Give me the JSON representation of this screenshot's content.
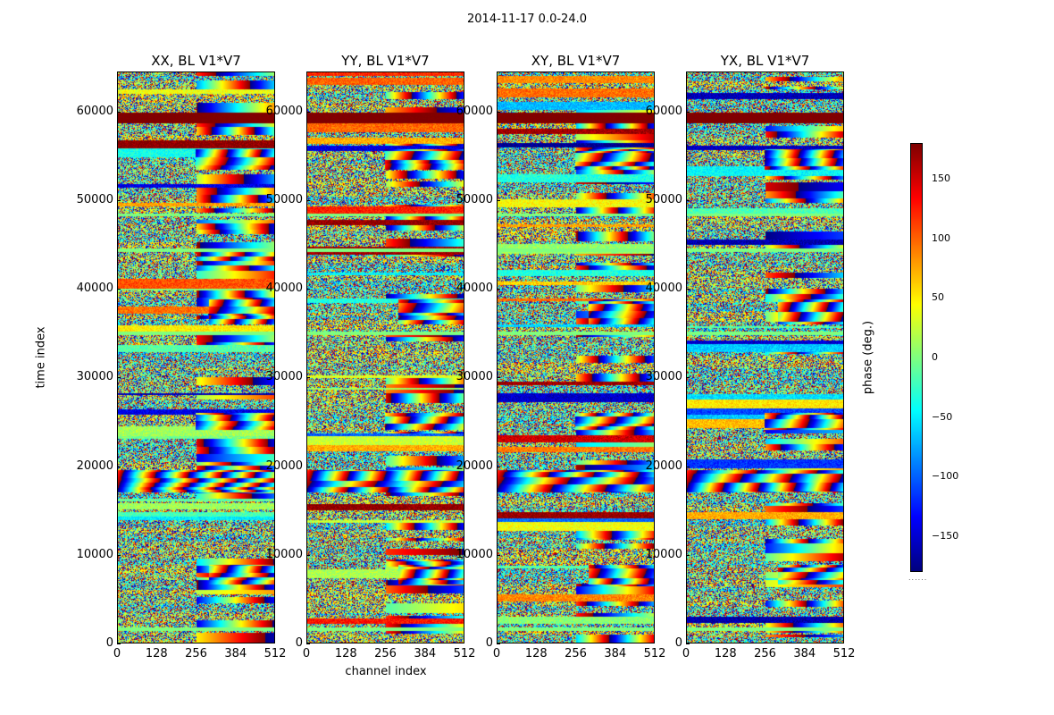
{
  "chart_data": {
    "type": "heatmap",
    "suptitle": "2014-11-17 0.0-24.0",
    "colormap": "jet",
    "panels": [
      {
        "title": "XX, BL V1*V7",
        "polarization": "XX",
        "baseline": "V1*V7"
      },
      {
        "title": "YY, BL V1*V7",
        "polarization": "YY",
        "baseline": "V1*V7"
      },
      {
        "title": "XY, BL V1*V7",
        "polarization": "XY",
        "baseline": "V1*V7"
      },
      {
        "title": "YX, BL V1*V7",
        "polarization": "YX",
        "baseline": "V1*V7"
      }
    ],
    "xlabel": "channel index",
    "ylabel": "time index",
    "xlim": [
      0,
      512
    ],
    "ylim": [
      0,
      64500
    ],
    "xticks": [
      "0",
      "128",
      "256",
      "384",
      "512"
    ],
    "xtick_values": [
      0,
      128,
      256,
      384,
      512
    ],
    "yticks": [
      "0",
      "10000",
      "20000",
      "30000",
      "40000",
      "50000",
      "60000"
    ],
    "ytick_values": [
      0,
      10000,
      20000,
      30000,
      40000,
      50000,
      60000
    ],
    "colorbar": {
      "label": "phase (deg.)",
      "vmin": -180,
      "vmax": 180,
      "ticks": [
        "150",
        "100",
        "50",
        "0",
        "−50",
        "−100",
        "−150"
      ],
      "tick_values": [
        150,
        100,
        50,
        0,
        -50,
        -100,
        -150
      ],
      "offset_text": "......"
    },
    "flagged_time_ranges": [
      {
        "start": 58800,
        "end": 60000,
        "phase": 180
      },
      {
        "start": 34800,
        "end": 35200,
        "phase": 0
      },
      {
        "start": 48200,
        "end": 48600,
        "phase": 0
      },
      {
        "start": 44200,
        "end": 44600,
        "phase": 0
      },
      {
        "start": 1300,
        "end": 1700,
        "phase": 0
      }
    ],
    "fringe_time_ranges": [
      {
        "start": 53500,
        "end": 55800,
        "channel_start": 256
      },
      {
        "start": 36000,
        "end": 38800,
        "channel_start": 300
      },
      {
        "start": 6500,
        "end": 8800,
        "channel_start": 300
      },
      {
        "start": 17000,
        "end": 19500,
        "channel_start": 0
      },
      {
        "start": 24000,
        "end": 26000,
        "channel_start": 256
      }
    ]
  }
}
